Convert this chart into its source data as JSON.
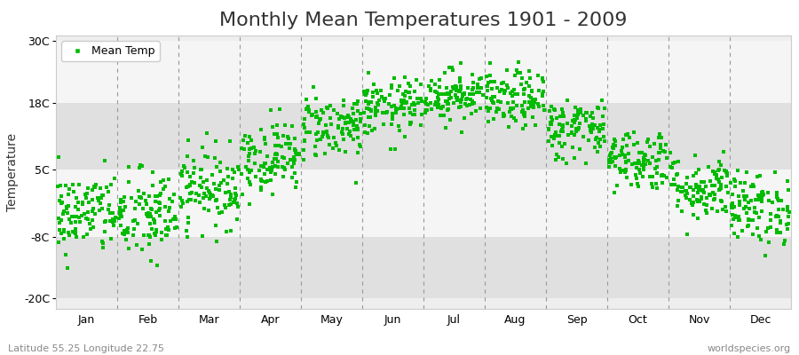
{
  "title": "Monthly Mean Temperatures 1901 - 2009",
  "ylabel": "Temperature",
  "footer_left": "Latitude 55.25 Longitude 22.75",
  "footer_right": "worldspecies.org",
  "legend_label": "Mean Temp",
  "dot_color": "#00BB00",
  "dot_size": 6,
  "background_color": "#EEEEEE",
  "band_color_light": "#F5F5F5",
  "band_color_dark": "#E0E0E0",
  "figure_background": "#FFFFFF",
  "yticks": [
    -20,
    -8,
    5,
    18,
    30
  ],
  "ytick_labels": [
    "-20C",
    "-8C",
    "5C",
    "18C",
    "30C"
  ],
  "ylim": [
    -22,
    31
  ],
  "months": [
    "Jan",
    "Feb",
    "Mar",
    "Apr",
    "May",
    "Jun",
    "Jul",
    "Aug",
    "Sep",
    "Oct",
    "Nov",
    "Dec"
  ],
  "month_means": [
    -3.5,
    -4.0,
    1.5,
    7.5,
    13.5,
    17.0,
    19.5,
    18.5,
    13.0,
    7.0,
    1.5,
    -2.5
  ],
  "month_stds": [
    4.0,
    4.5,
    3.8,
    3.5,
    3.2,
    2.8,
    2.5,
    2.8,
    3.0,
    3.0,
    3.2,
    3.5
  ],
  "n_years": 109,
  "seed": 42,
  "title_fontsize": 16,
  "axis_fontsize": 10,
  "tick_fontsize": 9,
  "legend_fontsize": 9,
  "footer_fontsize": 8,
  "dashed_line_color": "#999999",
  "spine_color": "#CCCCCC"
}
